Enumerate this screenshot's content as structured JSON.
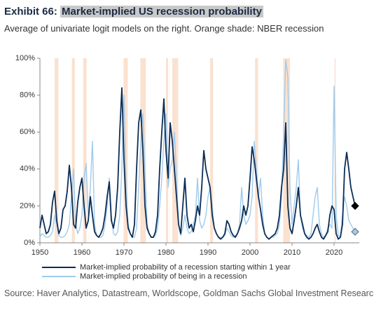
{
  "chart_data": {
    "type": "line",
    "title_prefix": "Exhibit 66:",
    "title": "Market-implied US recession probability",
    "subtitle": "Average of univariate logit models on the right. Orange shade: NBER recession",
    "source": "Source: Haver Analytics, Datastream, Worldscope, Goldman Sachs Global Investment Research",
    "xlim": [
      1950,
      2026
    ],
    "xticks": [
      1950,
      1960,
      1970,
      1980,
      1990,
      2000,
      2010,
      2020
    ],
    "ylim": [
      0,
      100
    ],
    "yticks": [
      {
        "value": 0,
        "label": "0%"
      },
      {
        "value": 20,
        "label": "20%"
      },
      {
        "value": 40,
        "label": "40%"
      },
      {
        "value": 60,
        "label": "60%"
      },
      {
        "value": 80,
        "label": "80%"
      },
      {
        "value": 100,
        "label": "100%"
      }
    ],
    "recession_color": "#fbe1cf",
    "recessions": [
      [
        1953.5,
        1954.4
      ],
      [
        1957.6,
        1958.3
      ],
      [
        1960.3,
        1961.1
      ],
      [
        1969.9,
        1970.9
      ],
      [
        1973.9,
        1975.2
      ],
      [
        1980.0,
        1980.5
      ],
      [
        1981.5,
        1982.9
      ],
      [
        1990.5,
        1991.2
      ],
      [
        2001.2,
        2001.9
      ],
      [
        2007.9,
        2009.5
      ],
      [
        2020.1,
        2020.3
      ]
    ],
    "x": [
      1950,
      1950.5,
      1951,
      1951.5,
      1952,
      1952.5,
      1953,
      1953.5,
      1954,
      1954.5,
      1955,
      1955.5,
      1956,
      1956.5,
      1957,
      1957.5,
      1958,
      1958.5,
      1959,
      1959.5,
      1960,
      1960.5,
      1961,
      1961.5,
      1962,
      1962.5,
      1963,
      1963.5,
      1964,
      1964.5,
      1965,
      1965.5,
      1966,
      1966.5,
      1967,
      1967.5,
      1968,
      1968.5,
      1969,
      1969.5,
      1970,
      1970.5,
      1971,
      1971.5,
      1972,
      1972.5,
      1973,
      1973.5,
      1974,
      1974.5,
      1975,
      1975.5,
      1976,
      1976.5,
      1977,
      1977.5,
      1978,
      1978.5,
      1979,
      1979.5,
      1980,
      1980.5,
      1981,
      1981.5,
      1982,
      1982.5,
      1983,
      1983.5,
      1984,
      1984.5,
      1985,
      1985.5,
      1986,
      1986.5,
      1987,
      1987.5,
      1988,
      1988.5,
      1989,
      1989.5,
      1990,
      1990.5,
      1991,
      1991.5,
      1992,
      1992.5,
      1993,
      1993.5,
      1994,
      1994.5,
      1995,
      1995.5,
      1996,
      1996.5,
      1997,
      1997.5,
      1998,
      1998.5,
      1999,
      1999.5,
      2000,
      2000.5,
      2001,
      2001.5,
      2002,
      2002.5,
      2003,
      2003.5,
      2004,
      2004.5,
      2005,
      2005.5,
      2006,
      2006.5,
      2007,
      2007.5,
      2008,
      2008.5,
      2009,
      2009.5,
      2010,
      2010.5,
      2011,
      2011.5,
      2012,
      2012.5,
      2013,
      2013.5,
      2014,
      2014.5,
      2015,
      2015.5,
      2016,
      2016.5,
      2017,
      2017.5,
      2018,
      2018.5,
      2019,
      2019.5,
      2020,
      2020.5,
      2021,
      2021.5,
      2022,
      2022.5,
      2023,
      2023.5,
      2024,
      2024.5,
      2025
    ],
    "series": [
      {
        "name": "Market-implied probability of a recession starting within 1 year",
        "color": "#0b2d57",
        "values": [
          8,
          15,
          10,
          5,
          6,
          10,
          22,
          28,
          12,
          5,
          8,
          18,
          20,
          28,
          42,
          30,
          10,
          8,
          22,
          30,
          35,
          20,
          8,
          12,
          25,
          15,
          6,
          4,
          3,
          5,
          8,
          15,
          25,
          33,
          12,
          8,
          15,
          30,
          60,
          84,
          45,
          20,
          8,
          5,
          3,
          10,
          40,
          65,
          72,
          50,
          20,
          8,
          5,
          3,
          3,
          6,
          15,
          40,
          60,
          78,
          50,
          35,
          65,
          55,
          40,
          25,
          10,
          5,
          20,
          35,
          15,
          8,
          10,
          6,
          12,
          20,
          15,
          30,
          50,
          40,
          35,
          30,
          15,
          8,
          5,
          3,
          2,
          3,
          5,
          12,
          10,
          6,
          4,
          3,
          5,
          8,
          12,
          20,
          15,
          20,
          35,
          52,
          45,
          35,
          25,
          18,
          10,
          5,
          3,
          2,
          3,
          4,
          5,
          8,
          15,
          30,
          40,
          65,
          20,
          8,
          5,
          12,
          20,
          30,
          15,
          10,
          5,
          3,
          2,
          3,
          5,
          8,
          10,
          6,
          3,
          2,
          4,
          6,
          15,
          20,
          18,
          5,
          2,
          3,
          10,
          40,
          49,
          40,
          30,
          25,
          20
        ]
      },
      {
        "name": "Market-implied probability of being in a recession",
        "color": "#9fcbec",
        "values": [
          3,
          5,
          4,
          3,
          3,
          4,
          6,
          15,
          10,
          4,
          3,
          3,
          4,
          6,
          10,
          25,
          40,
          10,
          5,
          8,
          15,
          35,
          43,
          15,
          30,
          55,
          10,
          4,
          3,
          3,
          4,
          10,
          20,
          35,
          15,
          5,
          4,
          6,
          15,
          40,
          80,
          30,
          10,
          5,
          3,
          3,
          8,
          30,
          55,
          70,
          40,
          10,
          5,
          3,
          3,
          4,
          8,
          20,
          35,
          55,
          70,
          30,
          40,
          45,
          60,
          35,
          10,
          4,
          8,
          15,
          8,
          5,
          6,
          10,
          15,
          35,
          12,
          8,
          10,
          15,
          25,
          30,
          20,
          8,
          5,
          3,
          3,
          3,
          4,
          8,
          6,
          4,
          3,
          4,
          5,
          10,
          30,
          15,
          10,
          12,
          15,
          25,
          55,
          40,
          25,
          35,
          15,
          5,
          3,
          2,
          3,
          3,
          4,
          5,
          10,
          25,
          60,
          99,
          90,
          30,
          10,
          20,
          30,
          45,
          15,
          8,
          5,
          4,
          3,
          5,
          15,
          25,
          30,
          10,
          5,
          3,
          4,
          8,
          10,
          8,
          85,
          15,
          4,
          3,
          15,
          25,
          20,
          12,
          10,
          8,
          6
        ]
      }
    ]
  }
}
